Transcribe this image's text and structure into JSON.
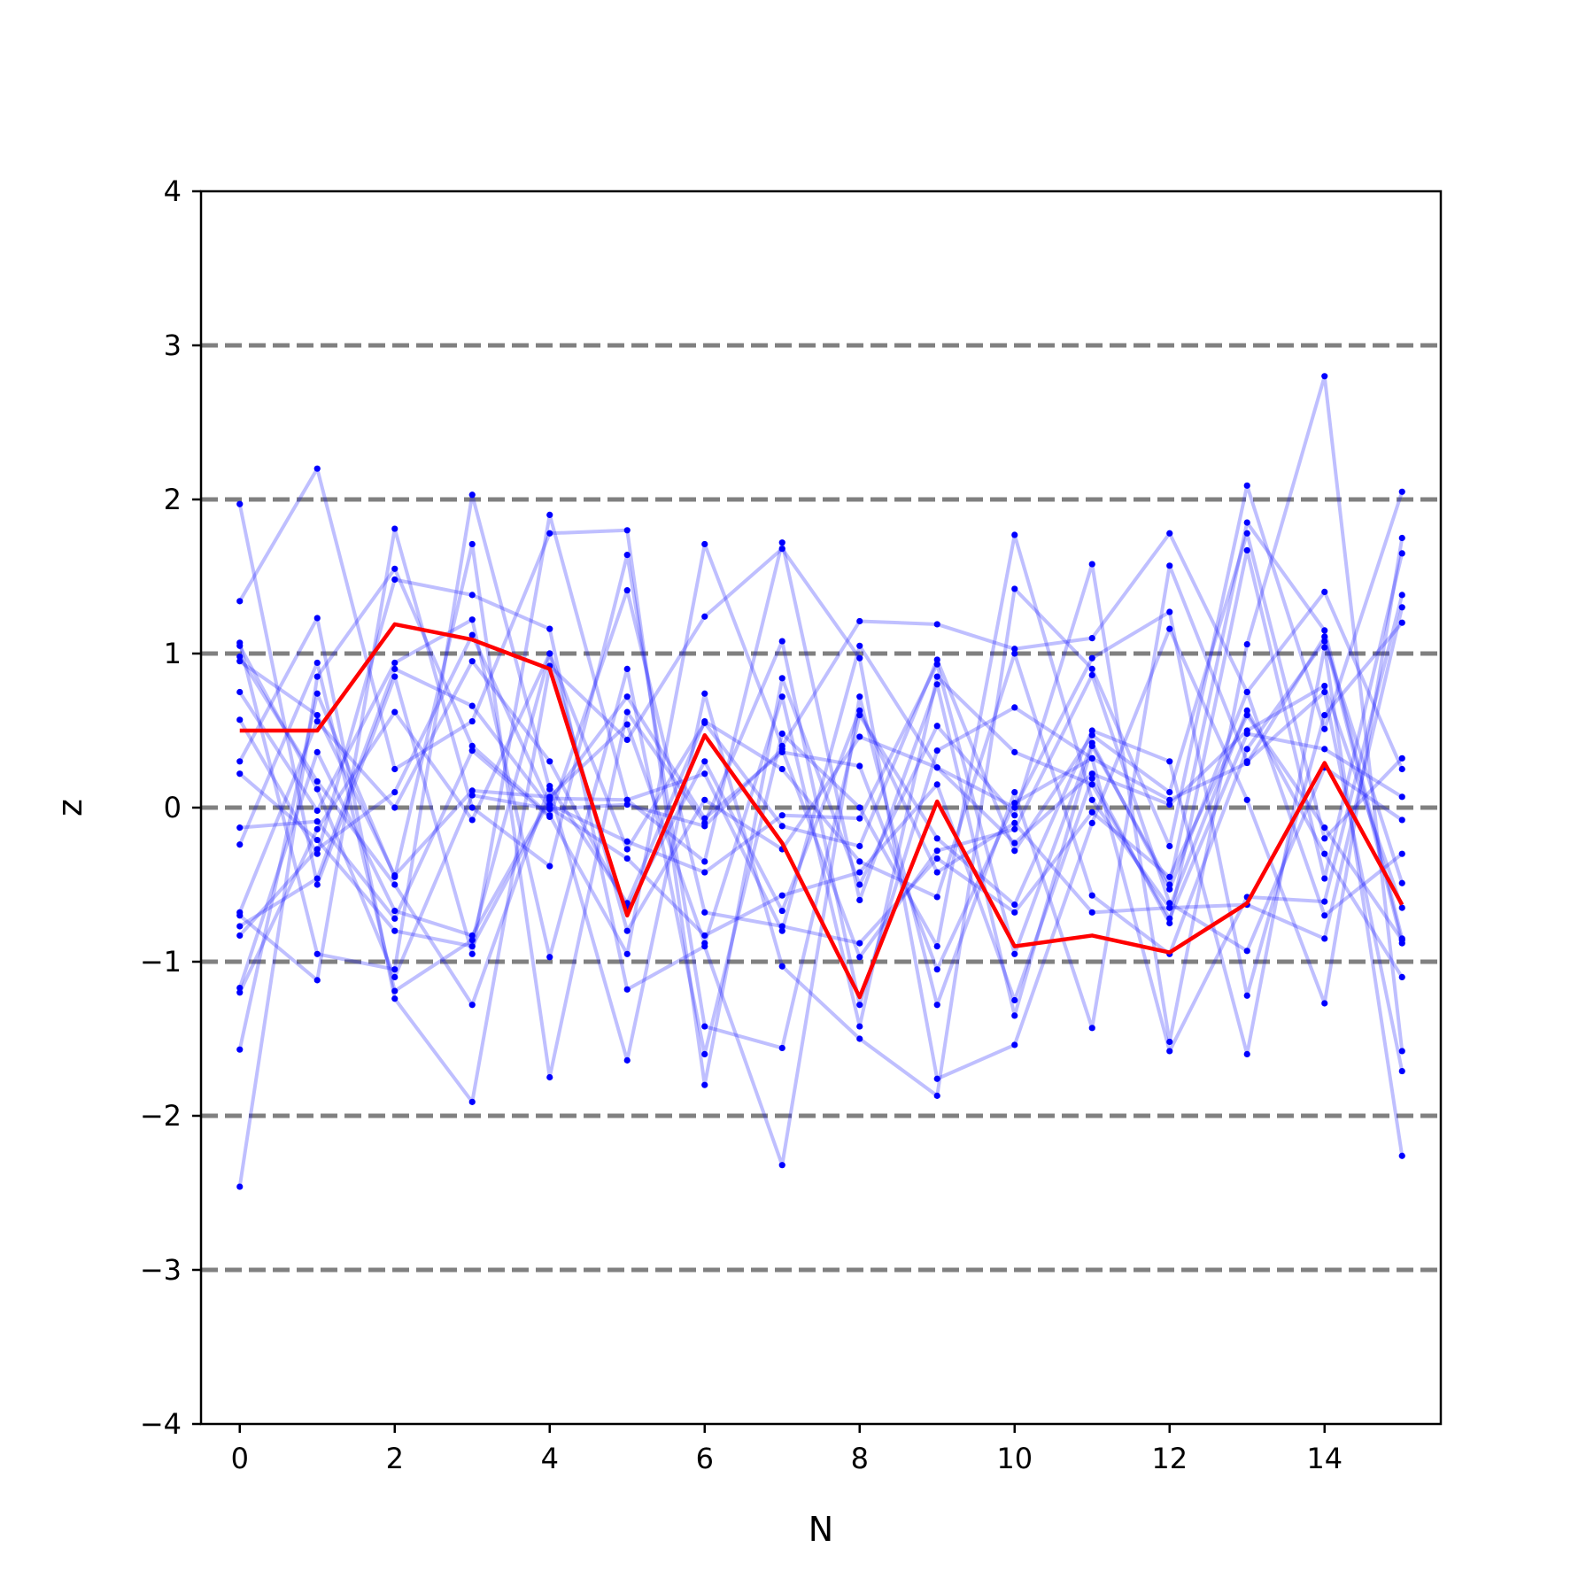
{
  "chart_data": {
    "type": "line",
    "title": "",
    "xlabel": "N",
    "ylabel": "z",
    "xlim": [
      -0.5,
      15.5
    ],
    "ylim": [
      -4,
      4
    ],
    "xticks": [
      0,
      2,
      4,
      6,
      8,
      10,
      12,
      14
    ],
    "xtick_labels": [
      "0",
      "2",
      "4",
      "6",
      "8",
      "10",
      "12",
      "14"
    ],
    "yticks": [
      -4,
      -3,
      -2,
      -1,
      0,
      1,
      2,
      3,
      4
    ],
    "ytick_labels": [
      "−4",
      "−3",
      "−2",
      "−1",
      "0",
      "1",
      "2",
      "3",
      "4"
    ],
    "reference_lines": [
      -3,
      -2,
      -1,
      0,
      1,
      2,
      3
    ],
    "x": [
      0,
      1,
      2,
      3,
      4,
      5,
      6,
      7,
      8,
      9,
      10,
      11,
      12,
      13,
      14,
      15
    ],
    "highlight_series": {
      "color": "#ff0000",
      "values": [
        0.5,
        0.5,
        1.19,
        1.09,
        0.9,
        -0.7,
        0.47,
        -0.23,
        -1.23,
        0.04,
        -0.9,
        -0.83,
        -0.94,
        -0.62,
        0.29,
        -0.63
      ]
    },
    "background_series_color": "#0000ff",
    "series": [
      {
        "values": [
          1.97,
          -0.5,
          0.85,
          -0.95,
          1.9,
          0.05,
          -0.35,
          1.72,
          -0.6,
          0.8,
          -1.35,
          0.4,
          -0.5,
          1.85,
          1.15,
          -0.85
        ]
      },
      {
        "values": [
          -2.46,
          0.85,
          1.55,
          0.4,
          -0.05,
          -0.95,
          1.71,
          0.4,
          1.21,
          1.19,
          1.03,
          1.1,
          1.78,
          0.75,
          1.4,
          0.25
        ]
      },
      {
        "values": [
          1.34,
          2.2,
          0.25,
          0.56,
          1.78,
          1.8,
          -1.8,
          0.84,
          -0.5,
          0.53,
          -0.05,
          1.58,
          -1.52,
          1.06,
          2.8,
          -1.58
        ]
      },
      {
        "values": [
          1.07,
          -0.95,
          -1.05,
          2.03,
          0.12,
          -1.64,
          0.74,
          -1.03,
          -1.5,
          -1.87,
          1.42,
          0.9,
          -0.25,
          2.09,
          0.51,
          2.05
        ]
      },
      {
        "values": [
          0.3,
          1.23,
          -1.24,
          -1.91,
          0.92,
          0.44,
          1.24,
          1.68,
          0.97,
          -1.76,
          -1.54,
          -0.1,
          1.16,
          0.05,
          -1.27,
          1.75
        ]
      },
      {
        "values": [
          -0.7,
          -1.12,
          1.81,
          0.0,
          -0.38,
          1.64,
          -1.42,
          -1.56,
          0.6,
          -0.2,
          -0.63,
          0.5,
          0.3,
          -1.6,
          1.04,
          -2.26
        ]
      },
      {
        "values": [
          0.57,
          -0.3,
          1.48,
          1.38,
          1.16,
          -1.18,
          -0.9,
          -2.32,
          0.72,
          -1.28,
          0.1,
          -1.43,
          1.57,
          0.3,
          0.75,
          -1.71
        ]
      },
      {
        "values": [
          -1.57,
          0.74,
          -0.45,
          1.71,
          -1.75,
          0.62,
          -0.1,
          1.08,
          -1.28,
          0.37,
          0.65,
          0.32,
          -1.58,
          -0.58,
          -0.61,
          1.38
        ]
      },
      {
        "values": [
          -0.24,
          0.94,
          -1.19,
          -0.86,
          1.0,
          -0.27,
          0.55,
          -0.12,
          -0.25,
          0.96,
          -0.28,
          0.47,
          0.1,
          1.78,
          -0.2,
          0.32
        ]
      },
      {
        "values": [
          0.75,
          -0.02,
          0.94,
          1.22,
          -0.97,
          0.9,
          -1.6,
          0.48,
          0.0,
          -0.9,
          1.77,
          0.05,
          -0.65,
          0.63,
          -0.3,
          -1.1
        ]
      },
      {
        "values": [
          -1.17,
          0.36,
          -0.67,
          -0.83,
          0.06,
          0.05,
          0.22,
          -0.8,
          1.05,
          0.26,
          0.0,
          0.97,
          1.27,
          -1.22,
          0.6,
          1.2
        ]
      },
      {
        "values": [
          -0.77,
          -0.46,
          0.9,
          0.66,
          0.0,
          -0.33,
          -0.83,
          -0.57,
          -0.42,
          0.15,
          -1.25,
          0.19,
          -0.75,
          1.67,
          -0.46,
          1.65
        ]
      },
      {
        "values": [
          0.98,
          0.17,
          -0.5,
          -1.28,
          0.14,
          -0.62,
          0.56,
          0.25,
          -0.35,
          -0.58,
          1.0,
          -0.57,
          -0.95,
          0.38,
          1.08,
          -0.49
        ]
      },
      {
        "values": [
          -0.13,
          -0.09,
          -0.72,
          0.37,
          -0.06,
          1.41,
          -0.68,
          -0.77,
          -0.88,
          -0.33,
          -0.68,
          -0.03,
          -0.45,
          0.6,
          -0.13,
          -0.86
        ]
      },
      {
        "values": [
          -0.68,
          0.56,
          0.0,
          0.95,
          0.3,
          -0.65,
          0.3,
          -0.67,
          0.63,
          -0.42,
          -0.1,
          -0.68,
          -0.65,
          -0.63,
          -0.85,
          1.3
        ]
      },
      {
        "values": [
          0.22,
          -0.21,
          -0.8,
          -0.9,
          0.05,
          0.72,
          -0.07,
          0.36,
          0.27,
          -1.05,
          0.03,
          0.32,
          0.05,
          0.29,
          1.11,
          -0.88
        ]
      },
      {
        "values": [
          0.95,
          0.6,
          -0.44,
          0.11,
          0.07,
          0.54,
          -0.88,
          0.72,
          -1.42,
          0.85,
          0.36,
          0.15,
          -0.72,
          0.48,
          0.38,
          0.07
        ]
      },
      {
        "values": [
          -0.83,
          -0.27,
          0.1,
          1.12,
          0.02,
          -0.22,
          -0.42,
          -0.05,
          -0.07,
          0.93,
          -0.95,
          0.42,
          -0.53,
          0.75,
          -0.7,
          -0.3
        ]
      },
      {
        "values": [
          1.05,
          0.12,
          -1.1,
          0.08,
          -0.01,
          0.02,
          -0.12,
          0.38,
          -0.97,
          -0.28,
          -0.14,
          0.86,
          -0.62,
          -0.93,
          0.26,
          -0.08
        ]
      },
      {
        "values": [
          -1.2,
          -0.14,
          0.62,
          -0.08,
          1.0,
          -0.8,
          0.05,
          -0.27,
          0.46,
          0.26,
          -0.23,
          0.22,
          0.02,
          0.5,
          0.79,
          -0.65
        ]
      }
    ]
  }
}
